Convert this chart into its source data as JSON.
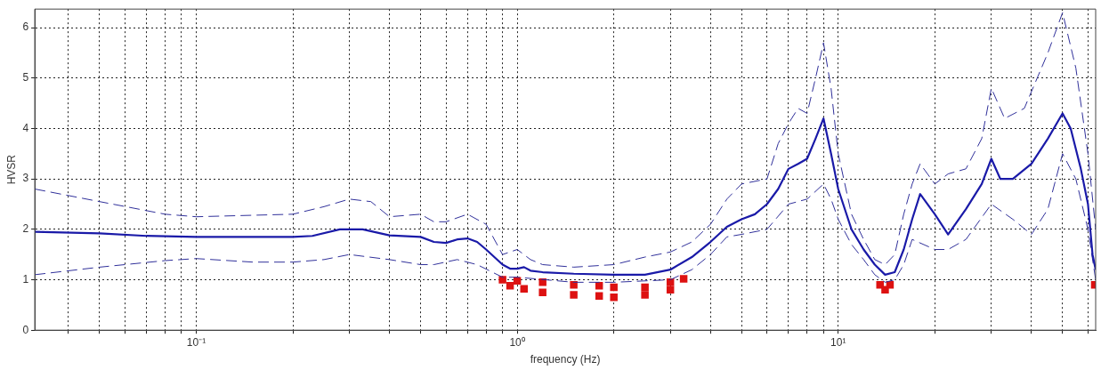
{
  "chart_data": {
    "type": "line",
    "xlabel": "frequency (Hz)",
    "ylabel": "HVSR",
    "log": "x",
    "grid": true,
    "legend": false,
    "xlim": [
      0.0314,
      63.4
    ],
    "ylim": [
      0,
      6.37
    ],
    "xticks": [
      {
        "value": 0.04,
        "label": null
      },
      {
        "value": 0.05,
        "label": null
      },
      {
        "value": 0.06,
        "label": null
      },
      {
        "value": 0.07,
        "label": null
      },
      {
        "value": 0.08,
        "label": null
      },
      {
        "value": 0.09,
        "label": null
      },
      {
        "value": 0.1,
        "label": "10⁻¹"
      },
      {
        "value": 0.2,
        "label": null
      },
      {
        "value": 0.3,
        "label": null
      },
      {
        "value": 0.4,
        "label": null
      },
      {
        "value": 0.5,
        "label": null
      },
      {
        "value": 0.6,
        "label": null
      },
      {
        "value": 0.7,
        "label": null
      },
      {
        "value": 0.8,
        "label": null
      },
      {
        "value": 0.9,
        "label": null
      },
      {
        "value": 1,
        "label": "10⁰"
      },
      {
        "value": 2,
        "label": null
      },
      {
        "value": 3,
        "label": null
      },
      {
        "value": 4,
        "label": null
      },
      {
        "value": 5,
        "label": null
      },
      {
        "value": 6,
        "label": null
      },
      {
        "value": 7,
        "label": null
      },
      {
        "value": 8,
        "label": null
      },
      {
        "value": 9,
        "label": null
      },
      {
        "value": 10,
        "label": "10¹"
      },
      {
        "value": 20,
        "label": null
      },
      {
        "value": 30,
        "label": null
      },
      {
        "value": 40,
        "label": null
      },
      {
        "value": 50,
        "label": null
      },
      {
        "value": 60,
        "label": null
      }
    ],
    "yticks": [
      0,
      1,
      2,
      3,
      4,
      5,
      6
    ],
    "series": [
      {
        "color": "#1a1aa8",
        "line_style": "solid",
        "x": [
          0.0314,
          0.05,
          0.07,
          0.1,
          0.2,
          0.23,
          0.28,
          0.33,
          0.4,
          0.5,
          0.55,
          0.6,
          0.65,
          0.7,
          0.75,
          0.8,
          0.9,
          0.95,
          1.0,
          1.05,
          1.1,
          1.2,
          1.5,
          2,
          2.5,
          3,
          3.5,
          4,
          4.5,
          5,
          5.5,
          6,
          6.5,
          7,
          7.5,
          8,
          8.5,
          9,
          9.5,
          10,
          11,
          12,
          13,
          14,
          15,
          16,
          17,
          18,
          20,
          22,
          25,
          28,
          30,
          32,
          35,
          40,
          45,
          50,
          53,
          57,
          60,
          62,
          63.4
        ],
        "values": [
          1.95,
          1.92,
          1.87,
          1.85,
          1.85,
          1.87,
          2.0,
          2.0,
          1.88,
          1.85,
          1.75,
          1.73,
          1.8,
          1.82,
          1.75,
          1.6,
          1.3,
          1.22,
          1.22,
          1.25,
          1.18,
          1.15,
          1.12,
          1.1,
          1.1,
          1.2,
          1.45,
          1.75,
          2.05,
          2.2,
          2.3,
          2.5,
          2.8,
          3.2,
          3.3,
          3.4,
          3.8,
          4.2,
          3.5,
          2.8,
          2.0,
          1.6,
          1.3,
          1.1,
          1.15,
          1.6,
          2.2,
          2.7,
          2.3,
          1.9,
          2.4,
          2.9,
          3.4,
          3.0,
          3.0,
          3.3,
          3.8,
          4.3,
          4.0,
          3.2,
          2.5,
          1.5,
          1.2
        ]
      },
      {
        "color": "#30309a",
        "line_style": "dashed",
        "x": [
          0.0314,
          0.05,
          0.08,
          0.1,
          0.2,
          0.25,
          0.3,
          0.35,
          0.4,
          0.5,
          0.55,
          0.6,
          0.7,
          0.8,
          0.9,
          1.0,
          1.1,
          1.2,
          1.5,
          2,
          2.5,
          3,
          3.5,
          4,
          4.5,
          5,
          6,
          6.5,
          7,
          7.5,
          8,
          8.5,
          9,
          9.5,
          10,
          11,
          12,
          13,
          14,
          15,
          16,
          17,
          18,
          20,
          22,
          25,
          28,
          30,
          33,
          38,
          45,
          50,
          55,
          60,
          63.4
        ],
        "values": [
          2.8,
          2.55,
          2.3,
          2.25,
          2.3,
          2.45,
          2.6,
          2.55,
          2.25,
          2.3,
          2.15,
          2.15,
          2.3,
          2.1,
          1.5,
          1.6,
          1.4,
          1.3,
          1.25,
          1.3,
          1.45,
          1.55,
          1.75,
          2.1,
          2.6,
          2.9,
          3.0,
          3.7,
          4.1,
          4.4,
          4.3,
          5.0,
          5.7,
          4.8,
          3.5,
          2.3,
          1.8,
          1.4,
          1.3,
          1.5,
          2.3,
          2.9,
          3.3,
          2.9,
          3.1,
          3.2,
          3.8,
          4.8,
          4.2,
          4.4,
          5.5,
          6.3,
          5.2,
          3.5,
          2.0
        ]
      },
      {
        "color": "#30309a",
        "line_style": "dashed",
        "x": [
          0.0314,
          0.05,
          0.08,
          0.1,
          0.15,
          0.2,
          0.25,
          0.3,
          0.4,
          0.5,
          0.55,
          0.65,
          0.75,
          0.9,
          1.0,
          1.5,
          2,
          3,
          3.5,
          4,
          4.5,
          5,
          6,
          7,
          8,
          9,
          9.5,
          10,
          11,
          12,
          13,
          14,
          15,
          16,
          17,
          20,
          22,
          25,
          30,
          35,
          40,
          45,
          50,
          55,
          60,
          63.4
        ],
        "values": [
          1.1,
          1.25,
          1.38,
          1.42,
          1.35,
          1.35,
          1.4,
          1.5,
          1.4,
          1.3,
          1.3,
          1.4,
          1.3,
          1.05,
          1.05,
          0.95,
          0.95,
          1.0,
          1.2,
          1.5,
          1.85,
          1.9,
          2.0,
          2.5,
          2.6,
          2.9,
          2.6,
          2.2,
          1.7,
          1.4,
          1.1,
          0.95,
          1.0,
          1.3,
          1.8,
          1.6,
          1.6,
          1.8,
          2.5,
          2.2,
          1.9,
          2.4,
          3.5,
          3.0,
          2.0,
          1.0
        ]
      },
      {
        "type": "scatter",
        "color": "#dd1111",
        "marker": "square",
        "x": [
          0.9,
          1.0,
          1.2,
          1.5,
          1.8,
          2,
          2.5,
          3,
          3.3,
          0.95,
          1.05,
          1.2,
          1.5,
          1.8,
          2,
          2.5,
          3,
          13.5,
          14,
          14.5,
          63
        ],
        "values": [
          1.0,
          0.98,
          0.95,
          0.9,
          0.88,
          0.85,
          0.85,
          0.95,
          1.02,
          0.88,
          0.82,
          0.75,
          0.7,
          0.68,
          0.65,
          0.7,
          0.8,
          0.9,
          0.8,
          0.9,
          0.9
        ]
      }
    ]
  }
}
